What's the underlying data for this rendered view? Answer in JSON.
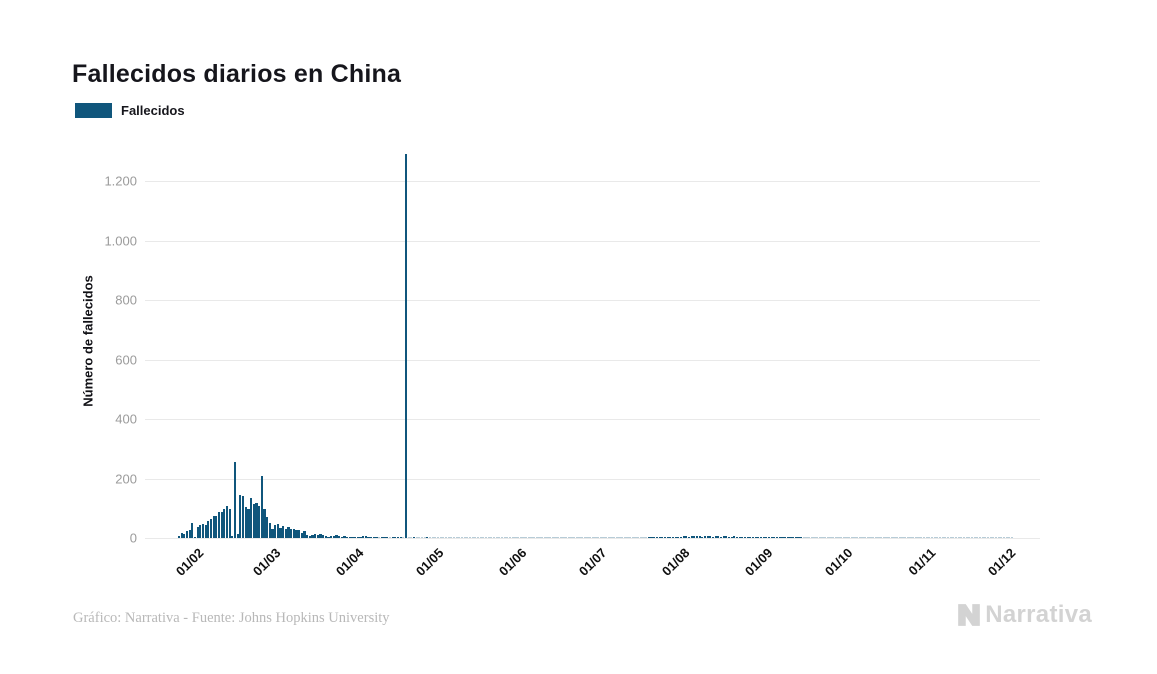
{
  "header": {
    "title": "Fallecidos diarios en China"
  },
  "legend": {
    "items": [
      {
        "label": "Fallecidos",
        "color": "#10567C"
      }
    ]
  },
  "footer": {
    "credit": "Gráfico: Narrativa - Fuente: Johns Hopkins University"
  },
  "branding": {
    "logo_icon": "narrativa-n-mark",
    "logo_text": "Narrativa",
    "logo_color": "#d3d3d3"
  },
  "chart_data": {
    "type": "bar",
    "title": "Fallecidos diarios en China",
    "xlabel": "",
    "ylabel": "Número de fallecidos",
    "legend_entries": [
      "Fallecidos"
    ],
    "legend_position": "top-left",
    "bar_color": "#10567C",
    "grid": true,
    "grid_color": "#e9e9e9",
    "ylim": [
      0,
      1300
    ],
    "ytick_values": [
      0,
      200,
      400,
      600,
      800,
      1000,
      1200
    ],
    "ytick_labels": [
      "0",
      "200",
      "400",
      "600",
      "800",
      "1.000",
      "1.200"
    ],
    "xtick_labels": [
      "01/02",
      "01/03",
      "01/04",
      "01/05",
      "01/06",
      "01/07",
      "01/08",
      "01/09",
      "01/10",
      "01/11",
      "01/12"
    ],
    "date_start": "23/01/2020",
    "date_end": "30/11/2020",
    "max_value": 1290,
    "max_value_date": "17/04/2020",
    "month_order": [
      "2020-01",
      "2020-02",
      "2020-03",
      "2020-04",
      "2020-05",
      "2020-06",
      "2020-07",
      "2020-08",
      "2020-09",
      "2020-10",
      "2020-11"
    ],
    "monthly_values": {
      "2020-01": [
        8,
        16,
        15,
        24,
        26,
        49,
        2,
        38,
        43
      ],
      "2020-02": [
        46,
        45,
        57,
        65,
        73,
        73,
        86,
        89,
        97,
        108,
        97,
        8,
        254,
        13,
        143,
        142,
        105,
        98,
        136,
        115,
        118,
        109,
        210,
        97,
        71,
        52,
        29,
        44,
        47
      ],
      "2020-03": [
        35,
        42,
        31,
        38,
        31,
        30,
        28,
        27,
        17,
        22,
        11,
        7,
        11,
        13,
        11,
        13,
        11,
        8,
        3,
        7,
        6,
        10,
        7,
        4,
        6,
        5,
        3,
        5,
        4,
        2,
        1
      ],
      "2020-04": [
        7,
        6,
        4,
        1,
        3,
        2,
        0,
        2,
        1,
        3,
        0,
        1,
        2,
        1,
        1,
        0,
        1290,
        0,
        0,
        1,
        0,
        0,
        0,
        0,
        1,
        0,
        0,
        0,
        0,
        0
      ],
      "2020-05": [
        0,
        0,
        0,
        0,
        0,
        0,
        0,
        0,
        0,
        0,
        0,
        0,
        0,
        0,
        0,
        0,
        0,
        0,
        0,
        0,
        0,
        0,
        0,
        0,
        0,
        0,
        0,
        0,
        0,
        0,
        0
      ],
      "2020-06": [
        0,
        0,
        0,
        0,
        0,
        0,
        0,
        0,
        0,
        0,
        0,
        0,
        0,
        0,
        0,
        0,
        0,
        0,
        0,
        0,
        0,
        0,
        0,
        0,
        0,
        0,
        0,
        0,
        0,
        0
      ],
      "2020-07": [
        0,
        0,
        0,
        0,
        0,
        0,
        0,
        0,
        0,
        0,
        0,
        0,
        0,
        0,
        0,
        0,
        1,
        2,
        1,
        2,
        1,
        2,
        4,
        3,
        2,
        4,
        5,
        3,
        5,
        6,
        7
      ],
      "2020-08": [
        5,
        8,
        6,
        8,
        6,
        5,
        7,
        8,
        6,
        5,
        7,
        6,
        5,
        8,
        6,
        4,
        5,
        6,
        4,
        3,
        4,
        5,
        3,
        2,
        3,
        2,
        3,
        2,
        1,
        2,
        1
      ],
      "2020-09": [
        2,
        1,
        2,
        1,
        3,
        1,
        2,
        1,
        1,
        2,
        1,
        1,
        0,
        0,
        0,
        0,
        0,
        0,
        0,
        0,
        0,
        0,
        0,
        0,
        0,
        0,
        0,
        0,
        0,
        0
      ],
      "2020-10": [
        0,
        0,
        0,
        0,
        0,
        0,
        0,
        0,
        0,
        0,
        0,
        0,
        0,
        0,
        0,
        0,
        0,
        0,
        0,
        0,
        0,
        0,
        0,
        0,
        0,
        0,
        0,
        0,
        0,
        0,
        0
      ],
      "2020-11": [
        0,
        0,
        0,
        0,
        0,
        0,
        0,
        0,
        0,
        0,
        0,
        0,
        0,
        0,
        0,
        0,
        0,
        0,
        0,
        0,
        0,
        0,
        0,
        0,
        0,
        0,
        0,
        0,
        0,
        0
      ]
    }
  }
}
